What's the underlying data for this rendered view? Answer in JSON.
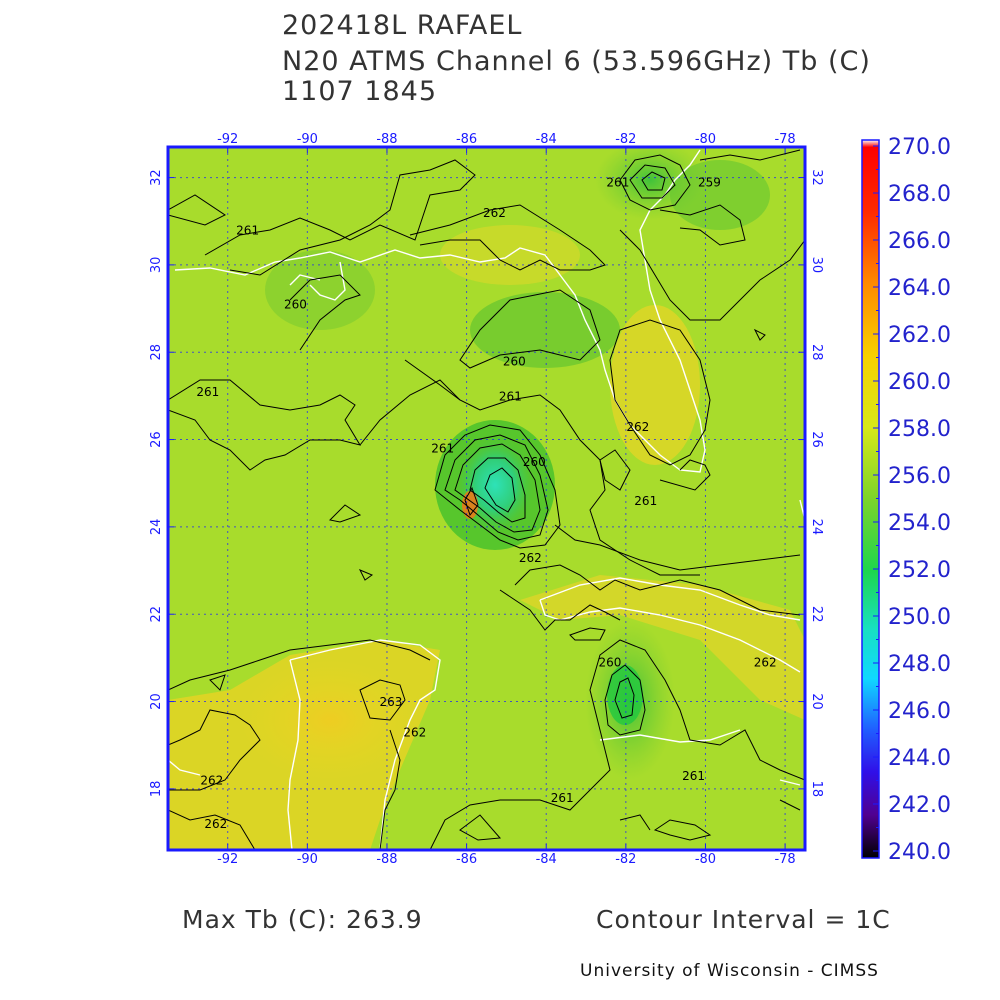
{
  "header": {
    "line1": "202418L RAFAEL",
    "line2": "N20 ATMS Channel 6 (53.596GHz) Tb (C)",
    "line3": "1107 1845"
  },
  "map": {
    "lon_ticks": [
      "-92",
      "-90",
      "-88",
      "-86",
      "-84",
      "-82",
      "-80",
      "-78"
    ],
    "lat_ticks": [
      "32",
      "30",
      "28",
      "26",
      "24",
      "22",
      "20",
      "18"
    ],
    "lon_range": [
      -93.5,
      -77.5
    ],
    "lat_range": [
      16.6,
      32.7
    ],
    "grid": true,
    "contour_labels": [
      {
        "text": "261",
        "lon": -91.5,
        "lat": 30.7
      },
      {
        "text": "262",
        "lon": -85.3,
        "lat": 31.1
      },
      {
        "text": "261",
        "lon": -82.2,
        "lat": 31.8
      },
      {
        "text": "259",
        "lon": -79.9,
        "lat": 31.8
      },
      {
        "text": "260",
        "lon": -90.3,
        "lat": 29.0
      },
      {
        "text": "260",
        "lon": -84.8,
        "lat": 27.7
      },
      {
        "text": "261",
        "lon": -92.5,
        "lat": 27.0
      },
      {
        "text": "261",
        "lon": -84.9,
        "lat": 26.9
      },
      {
        "text": "262",
        "lon": -81.7,
        "lat": 26.2
      },
      {
        "text": "261",
        "lon": -86.6,
        "lat": 25.7
      },
      {
        "text": "260",
        "lon": -84.3,
        "lat": 25.4
      },
      {
        "text": "261",
        "lon": -81.5,
        "lat": 24.5
      },
      {
        "text": "262",
        "lon": -84.4,
        "lat": 23.2
      },
      {
        "text": "260",
        "lon": -82.4,
        "lat": 20.8
      },
      {
        "text": "263",
        "lon": -87.9,
        "lat": 19.9
      },
      {
        "text": "262",
        "lon": -87.3,
        "lat": 19.2
      },
      {
        "text": "262",
        "lon": -92.4,
        "lat": 18.1
      },
      {
        "text": "261",
        "lon": -83.6,
        "lat": 17.7
      },
      {
        "text": "261",
        "lon": -80.3,
        "lat": 18.2
      },
      {
        "text": "262",
        "lon": -92.3,
        "lat": 17.1
      },
      {
        "text": "262",
        "lon": -78.5,
        "lat": 20.8
      }
    ]
  },
  "colorbar": {
    "labels": [
      "270.0",
      "268.0",
      "266.0",
      "264.0",
      "262.0",
      "260.0",
      "258.0",
      "256.0",
      "254.0",
      "252.0",
      "250.0",
      "248.0",
      "246.0",
      "244.0",
      "242.0",
      "240.0"
    ],
    "min": 240,
    "max": 270
  },
  "footer": {
    "max_tb": "Max Tb (C): 263.9",
    "contour_interval": "Contour Interval = 1C",
    "credit": "University of Wisconsin - CIMSS"
  },
  "colors": {
    "background_field": "#a8dc2c",
    "warm_field": "#e8d823",
    "cool_field": "#52c42c",
    "axis": "#1a1aff",
    "grid": "#1a1aff",
    "coastline": "#ffffff",
    "contour": "#000000"
  }
}
